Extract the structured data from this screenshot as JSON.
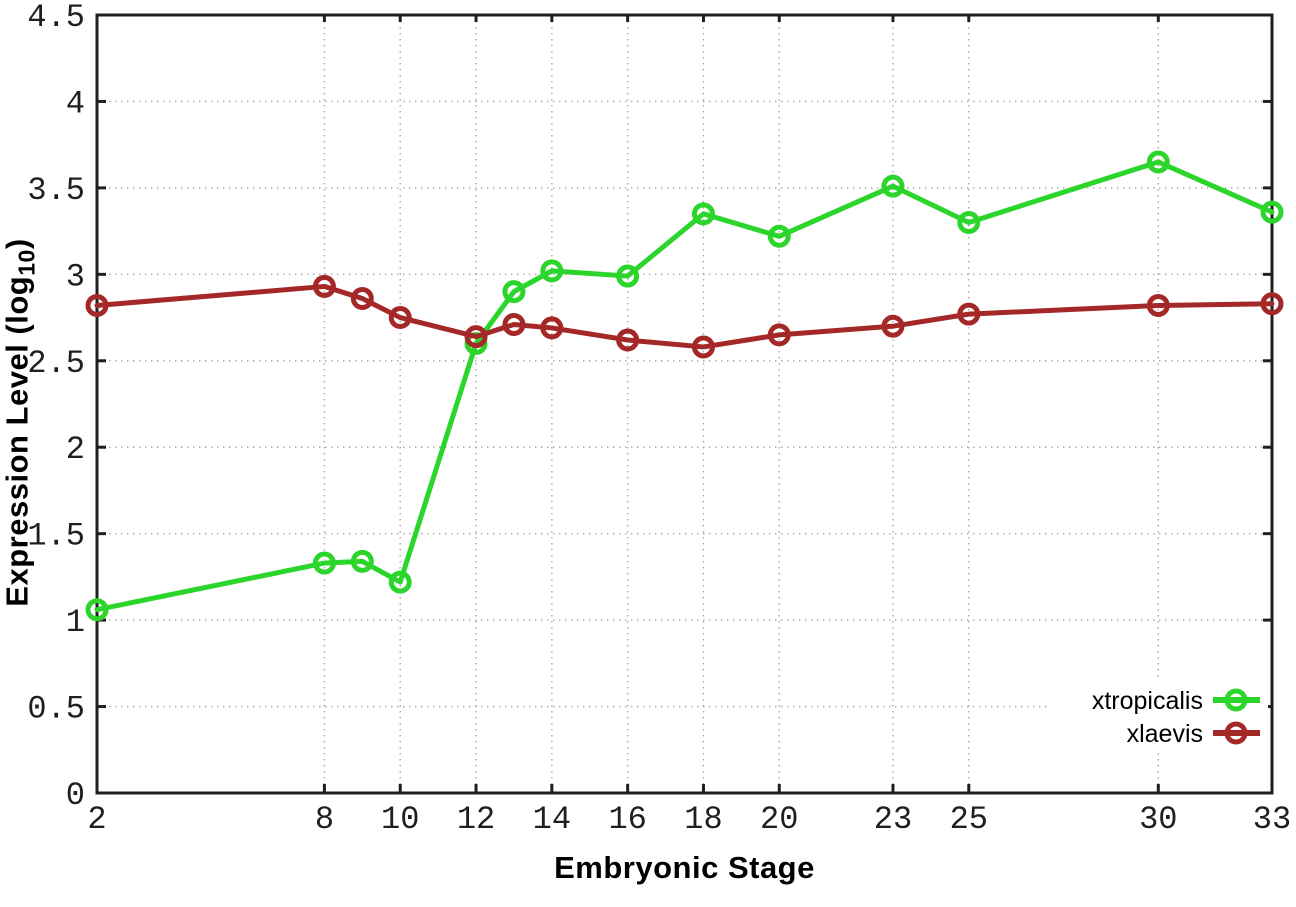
{
  "chart_data": {
    "type": "line",
    "title": "",
    "xlabel": "Embryonic Stage",
    "ylabel": {
      "prefix": "Expression Level (log",
      "subscript": "10",
      "suffix": ")"
    },
    "x": [
      2,
      8,
      9,
      10,
      12,
      13,
      14,
      16,
      18,
      20,
      23,
      25,
      30,
      33
    ],
    "series": [
      {
        "name": "xtropicalis",
        "color": "#2bd52b",
        "values": [
          1.06,
          1.33,
          1.34,
          1.22,
          2.6,
          2.9,
          3.02,
          2.99,
          3.35,
          3.22,
          3.51,
          3.3,
          3.65,
          3.36
        ]
      },
      {
        "name": "xlaevis",
        "color": "#a52828",
        "values": [
          2.82,
          2.93,
          2.86,
          2.75,
          2.64,
          2.71,
          2.69,
          2.62,
          2.58,
          2.65,
          2.7,
          2.77,
          2.82,
          2.83
        ]
      }
    ],
    "xlim": [
      2,
      33
    ],
    "ylim": [
      0,
      4.5
    ],
    "xtick_values": [
      2,
      8,
      10,
      12,
      14,
      16,
      18,
      20,
      23,
      25,
      30,
      33
    ],
    "xtick_labels": [
      "2",
      "8",
      "10",
      "12",
      "14",
      "16",
      "18",
      "20",
      "23",
      "25",
      "30",
      "33"
    ],
    "ytick_values": [
      0,
      0.5,
      1,
      1.5,
      2,
      2.5,
      3,
      3.5,
      4,
      4.5
    ],
    "ytick_labels": [
      "0",
      "0.5",
      "1",
      "1.5",
      "2",
      "2.5",
      "3",
      "3.5",
      "4",
      "4.5"
    ],
    "grid": true,
    "legend_position": "bottom-right-inside",
    "axis_color": "#1f1f1f",
    "grid_color": "#a8a8a8",
    "tick_label_color": "#1f1f1f",
    "legend_text_color": "#000000"
  }
}
